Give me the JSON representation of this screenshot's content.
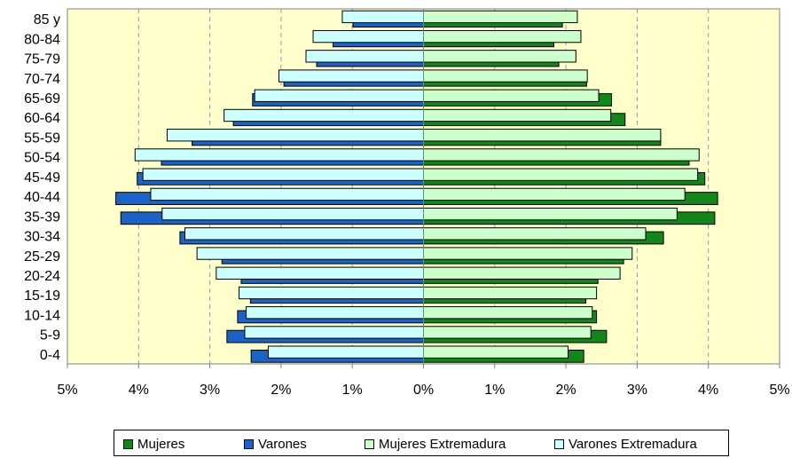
{
  "chart_data": {
    "type": "bar",
    "orientation": "horizontal",
    "subtype": "population-pyramid",
    "categories": [
      "0-4",
      "5-9",
      "10-14",
      "15-19",
      "20-24",
      "25-29",
      "30-34",
      "35-39",
      "40-44",
      "45-49",
      "50-54",
      "55-59",
      "60-64",
      "65-69",
      "70-74",
      "75-79",
      "80-84",
      "85 y"
    ],
    "series": [
      {
        "name": "Mujeres",
        "side": "right",
        "color": "#13861a",
        "values": [
          2.25,
          2.57,
          2.43,
          2.28,
          2.45,
          2.81,
          3.37,
          4.09,
          4.13,
          3.95,
          3.73,
          3.33,
          2.83,
          2.64,
          2.29,
          1.9,
          1.83,
          1.95
        ]
      },
      {
        "name": "Varones",
        "side": "left",
        "color": "#1b63c8",
        "values": [
          2.42,
          2.76,
          2.61,
          2.43,
          2.56,
          2.83,
          3.42,
          4.25,
          4.32,
          4.02,
          3.68,
          3.25,
          2.67,
          2.4,
          1.96,
          1.5,
          1.27,
          0.99
        ]
      },
      {
        "name": "Mujeres Extremadura",
        "side": "right",
        "color": "#ccffcc",
        "values": [
          2.03,
          2.35,
          2.37,
          2.43,
          2.76,
          2.93,
          3.12,
          3.56,
          3.67,
          3.85,
          3.87,
          3.33,
          2.63,
          2.46,
          2.3,
          2.14,
          2.21,
          2.16
        ]
      },
      {
        "name": "Varones Extremadura",
        "side": "left",
        "color": "#ccffff",
        "values": [
          2.18,
          2.51,
          2.49,
          2.59,
          2.91,
          3.18,
          3.35,
          3.67,
          3.83,
          3.94,
          4.05,
          3.6,
          2.8,
          2.37,
          2.03,
          1.65,
          1.55,
          1.14
        ]
      }
    ],
    "xlim": [
      -5,
      5
    ],
    "xticks": [
      "5%",
      "4%",
      "3%",
      "2%",
      "1%",
      "0%",
      "1%",
      "2%",
      "3%",
      "4%",
      "5%"
    ],
    "grid": "vertical dashed",
    "plot_background": "#ffffcc",
    "legend_position": "bottom"
  }
}
